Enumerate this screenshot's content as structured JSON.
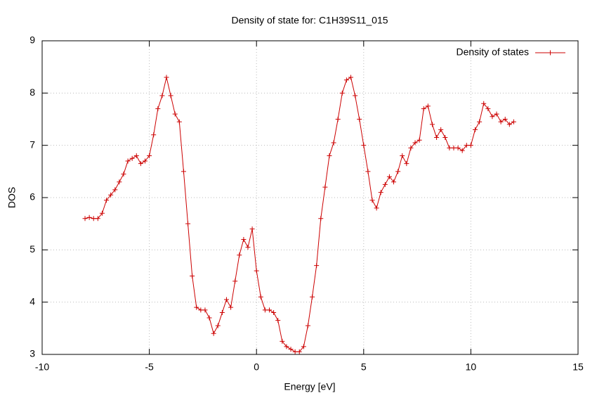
{
  "chart_data": {
    "type": "line",
    "title": "Density of state for: C1H39S11_015",
    "x_label": "Energy [eV]",
    "y_label": "DOS",
    "x": [
      -8,
      -7.8,
      -7.6,
      -7.4,
      -7.2,
      -7,
      -6.8,
      -6.6,
      -6.4,
      -6.2,
      -6,
      -5.8,
      -5.6,
      -5.4,
      -5.2,
      -5,
      -4.8,
      -4.6,
      -4.4,
      -4.2,
      -4,
      -3.8,
      -3.6,
      -3.4,
      -3.2,
      -3,
      -2.8,
      -2.6,
      -2.4,
      -2.2,
      -2,
      -1.8,
      -1.6,
      -1.4,
      -1.2,
      -1,
      -0.8,
      -0.6,
      -0.4,
      -0.2,
      0,
      0.2,
      0.4,
      0.6,
      0.8,
      1,
      1.2,
      1.4,
      1.6,
      1.8,
      2,
      2.2,
      2.4,
      2.6,
      2.8,
      3,
      3.2,
      3.4,
      3.6,
      3.8,
      4,
      4.2,
      4.4,
      4.6,
      4.8,
      5,
      5.2,
      5.4,
      5.6,
      5.8,
      6,
      6.2,
      6.4,
      6.6,
      6.8,
      7,
      7.2,
      7.4,
      7.6,
      7.8,
      8,
      8.2,
      8.4,
      8.6,
      8.8,
      9,
      9.2,
      9.4,
      9.6,
      9.8,
      10,
      10.2,
      10.4,
      10.6,
      10.8,
      11,
      11.2,
      11.4,
      11.6,
      11.8,
      12
    ],
    "series": [
      {
        "name": "Density of states",
        "color": "#cc0000",
        "values": [
          5.6,
          5.62,
          5.6,
          5.6,
          5.7,
          5.95,
          6.05,
          6.15,
          6.3,
          6.45,
          6.7,
          6.75,
          6.8,
          6.65,
          6.7,
          6.8,
          7.2,
          7.7,
          7.95,
          8.3,
          7.95,
          7.6,
          7.45,
          6.5,
          5.5,
          4.5,
          3.9,
          3.85,
          3.85,
          3.7,
          3.4,
          3.55,
          3.8,
          4.05,
          3.9,
          4.4,
          4.9,
          5.2,
          5.05,
          5.4,
          4.6,
          4.1,
          3.85,
          3.85,
          3.8,
          3.65,
          3.25,
          3.15,
          3.1,
          3.05,
          3.05,
          3.15,
          3.55,
          4.1,
          4.7,
          5.6,
          6.2,
          6.8,
          7.05,
          7.5,
          8,
          8.25,
          8.3,
          7.95,
          7.5,
          7,
          6.5,
          5.95,
          5.8,
          6.1,
          6.25,
          6.4,
          6.3,
          6.5,
          6.8,
          6.65,
          6.95,
          7.05,
          7.1,
          7.7,
          7.75,
          7.4,
          7.15,
          7.3,
          7.15,
          6.95,
          6.95,
          6.95,
          6.9,
          7,
          7,
          7.3,
          7.45,
          7.8,
          7.7,
          7.55,
          7.6,
          7.45,
          7.5,
          7.4,
          7.45
        ]
      }
    ],
    "xlim": [
      -10,
      15
    ],
    "xticks": [
      -10,
      -5,
      0,
      5,
      10,
      15
    ],
    "ylim": [
      3,
      9
    ],
    "yticks": [
      3,
      4,
      5,
      6,
      7,
      8,
      9
    ],
    "grid": true,
    "legend": "top-right"
  }
}
